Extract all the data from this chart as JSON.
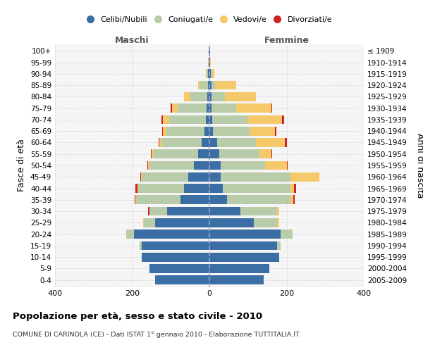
{
  "age_groups": [
    "0-4",
    "5-9",
    "10-14",
    "15-19",
    "20-24",
    "25-29",
    "30-34",
    "35-39",
    "40-44",
    "45-49",
    "50-54",
    "55-59",
    "60-64",
    "65-69",
    "70-74",
    "75-79",
    "80-84",
    "85-89",
    "90-94",
    "95-99",
    "100+"
  ],
  "birth_years": [
    "2005-2009",
    "2000-2004",
    "1995-1999",
    "1990-1994",
    "1985-1989",
    "1980-1984",
    "1975-1979",
    "1970-1974",
    "1965-1969",
    "1960-1964",
    "1955-1959",
    "1950-1954",
    "1945-1949",
    "1940-1944",
    "1935-1939",
    "1930-1934",
    "1925-1929",
    "1920-1924",
    "1915-1919",
    "1910-1914",
    "≤ 1909"
  ],
  "colors": {
    "celibi": "#3b6ea5",
    "coniugati": "#b8ccaa",
    "vedovi": "#f5c96a",
    "divorziati": "#cc2222"
  },
  "males": {
    "celibi": [
      140,
      155,
      175,
      175,
      195,
      140,
      110,
      75,
      65,
      55,
      40,
      30,
      20,
      12,
      10,
      7,
      5,
      4,
      3,
      1,
      1
    ],
    "coniugati": [
      0,
      0,
      0,
      5,
      20,
      30,
      45,
      115,
      120,
      120,
      115,
      115,
      105,
      100,
      95,
      75,
      45,
      20,
      5,
      1,
      0
    ],
    "vedovi": [
      0,
      0,
      0,
      0,
      0,
      1,
      1,
      1,
      2,
      2,
      3,
      4,
      5,
      8,
      15,
      15,
      15,
      5,
      2,
      1,
      0
    ],
    "divorziati": [
      0,
      0,
      0,
      0,
      1,
      1,
      3,
      3,
      5,
      2,
      3,
      3,
      2,
      3,
      5,
      3,
      0,
      0,
      0,
      0,
      0
    ]
  },
  "females": {
    "celibi": [
      140,
      155,
      180,
      175,
      185,
      115,
      80,
      45,
      35,
      30,
      30,
      25,
      20,
      10,
      8,
      5,
      5,
      5,
      3,
      1,
      1
    ],
    "coniugati": [
      0,
      0,
      0,
      10,
      30,
      60,
      95,
      165,
      175,
      180,
      115,
      105,
      100,
      95,
      90,
      65,
      35,
      10,
      5,
      0,
      0
    ],
    "vedovi": [
      0,
      0,
      0,
      0,
      0,
      5,
      5,
      8,
      10,
      75,
      55,
      30,
      75,
      65,
      90,
      90,
      80,
      55,
      5,
      2,
      0
    ],
    "divorziati": [
      0,
      0,
      0,
      0,
      0,
      1,
      0,
      3,
      5,
      0,
      3,
      3,
      5,
      3,
      5,
      3,
      0,
      0,
      0,
      0,
      0
    ]
  },
  "xlim": 400,
  "title": "Popolazione per età, sesso e stato civile - 2010",
  "subtitle": "COMUNE DI CARINOLA (CE) - Dati ISTAT 1° gennaio 2010 - Elaborazione TUTTITALIA.IT",
  "xlabel_left": "Maschi",
  "xlabel_right": "Femmine",
  "ylabel_left": "Fasce di età",
  "ylabel_right": "Anni di nascita",
  "legend_labels": [
    "Celibi/Nubili",
    "Coniugati/e",
    "Vedovi/e",
    "Divorziati/e"
  ],
  "background_color": "#ffffff",
  "plot_bg": "#f5f5f5",
  "grid_color": "#cccccc"
}
